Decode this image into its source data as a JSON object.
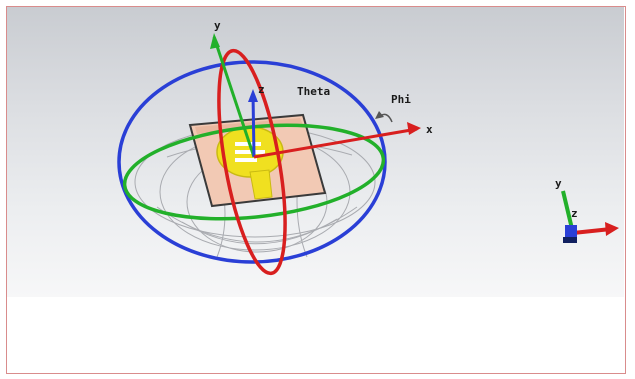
{
  "viewport": {
    "labels": {
      "y": "y",
      "z": "z",
      "theta": "Theta",
      "phi": "Phi",
      "x": "x"
    },
    "triad": {
      "y": "y",
      "z": "z"
    },
    "colors": {
      "background_top": "#c9ccd1",
      "background_bottom": "#f7f7f8",
      "theta_ring": "#2a3fd6",
      "phi_ring": "#22b02a",
      "elevation_ring": "#d81f1f",
      "axis_x": "#d81f1f",
      "axis_y": "#22b02a",
      "axis_z": "#2a3fd6",
      "substrate": "#f2c9b4",
      "patch": "#f0e020"
    }
  }
}
